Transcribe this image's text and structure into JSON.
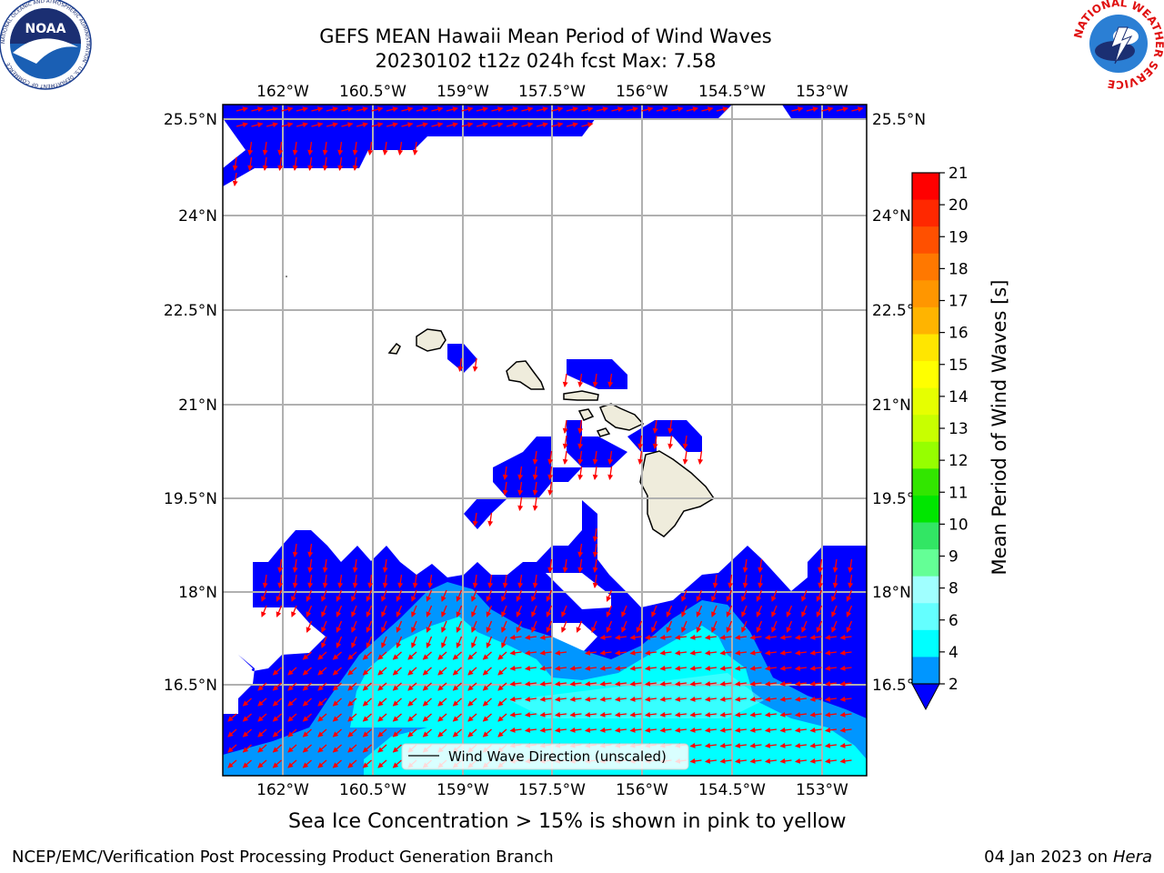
{
  "title_line1": "GEFS MEAN Hawaii Mean Period of Wind Waves",
  "title_line2": "20230102 t12z 024h fcst   Max: 7.58",
  "logo_left": "NOAA",
  "logo_left_ring": "NATIONAL OCEANIC AND ATMOSPHERIC ADMINISTRATION · U.S. DEPARTMENT OF COMMERCE",
  "logo_right_ring": "NATIONAL WEATHER SERVICE",
  "lon_ticks": [
    "162°W",
    "160.5°W",
    "159°W",
    "157.5°W",
    "156°W",
    "154.5°W",
    "153°W"
  ],
  "lat_ticks": [
    "25.5°N",
    "24°N",
    "22.5°N",
    "21°N",
    "19.5°N",
    "18°N",
    "16.5°N"
  ],
  "legend_label": "Wind Wave Direction (unscaled)",
  "colorbar": {
    "label": "Mean Period of Wind Waves [s]",
    "ticks": [
      "21",
      "20",
      "19",
      "18",
      "17",
      "16",
      "15",
      "14",
      "13",
      "12",
      "11",
      "10",
      "9",
      "8",
      "6",
      "4",
      "2"
    ],
    "colors": [
      "#ff0000",
      "#ff2800",
      "#ff5000",
      "#ff7800",
      "#ff9600",
      "#ffb400",
      "#ffe600",
      "#ffff00",
      "#e6ff00",
      "#c8ff00",
      "#96ff00",
      "#32e600",
      "#00e600",
      "#32e664",
      "#64ff96",
      "#a0ffff",
      "#64ffff",
      "#00ffff",
      "#0096ff"
    ],
    "extend_color": "#0000ff"
  },
  "caption": "Sea Ice Concentration > 15% is shown in pink to yellow",
  "footer_left": "NCEP/EMC/Verification Post Processing Product Generation Branch",
  "footer_right_date": "04 Jan 2023 on",
  "footer_right_host": "Hera"
}
